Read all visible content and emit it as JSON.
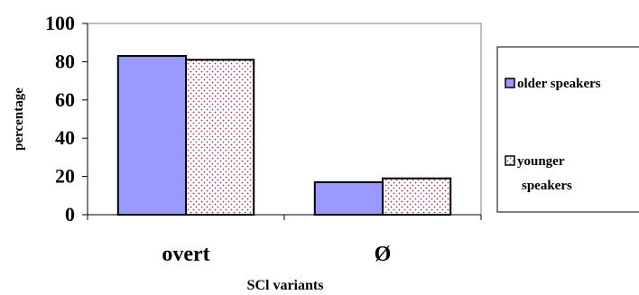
{
  "chart_data": {
    "type": "bar",
    "xlabel": "SCl variants",
    "ylabel": "percentage",
    "categories": [
      "overt",
      "Ø"
    ],
    "ylim": [
      0,
      100
    ],
    "yticks": [
      "0",
      "20",
      "40",
      "60",
      "80",
      "100"
    ],
    "grid": false,
    "legend_position": "right",
    "series": [
      {
        "name": "older speakers",
        "values": [
          83,
          17
        ],
        "fill": "solid",
        "color": "#9999ff"
      },
      {
        "name": "younger speakers",
        "values": [
          81,
          19
        ],
        "fill": "dotted",
        "color": "#ffffff",
        "dot_color": "#993366"
      }
    ],
    "legend_labels": [
      [
        "older speakers"
      ],
      [
        "younger",
        "speakers"
      ]
    ]
  }
}
